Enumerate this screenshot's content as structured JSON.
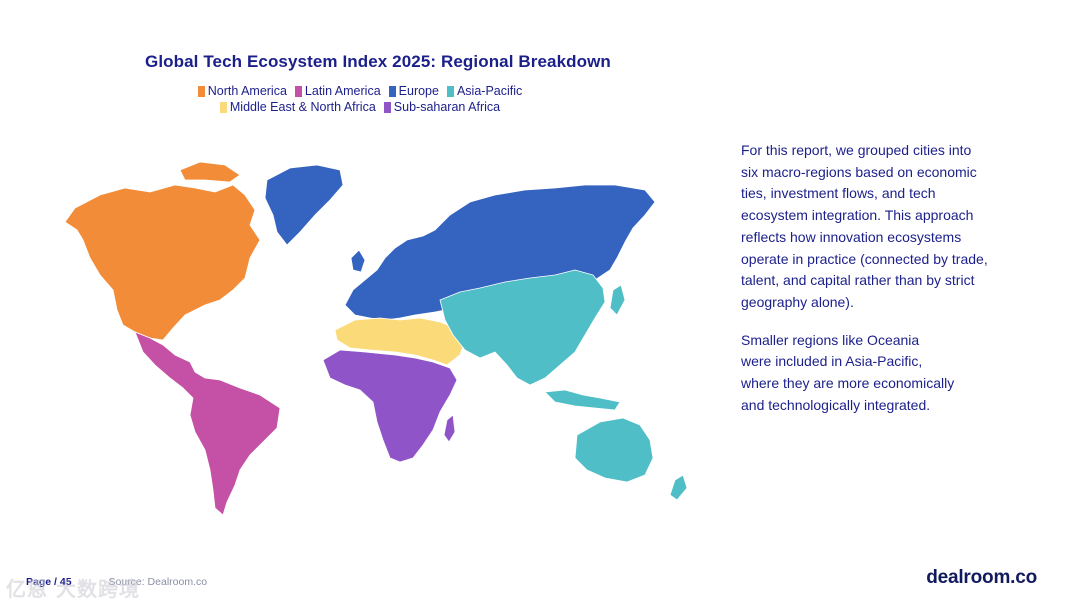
{
  "title": "Global Tech Ecosystem Index 2025: Regional Breakdown",
  "legend": [
    {
      "label": "North America",
      "color": "#f28c38"
    },
    {
      "label": "Latin America",
      "color": "#c451a5"
    },
    {
      "label": "Europe",
      "color": "#3563c0"
    },
    {
      "label": "Asia-Pacific",
      "color": "#4fbec7"
    },
    {
      "label": "Middle East & North Africa",
      "color": "#fbdb79"
    },
    {
      "label": "Sub-saharan Africa",
      "color": "#8f55c8"
    }
  ],
  "description": {
    "p1": "For this report, we grouped cities into\nsix macro-regions based on economic\nties, investment flows, and tech\necosystem integration. This approach\nreflects how innovation ecosystems\noperate in practice (connected by trade,\ntalent, and capital rather than by strict\ngeography alone).",
    "p2": "Smaller regions like Oceania\nwere included in Asia-Pacific,\nwhere they are more economically\nand technologically integrated."
  },
  "footer": {
    "page": "Page / 45",
    "source": "Source: Dealroom.co"
  },
  "brand": "dealroom.co",
  "watermark": "亿恩 大数跨境"
}
